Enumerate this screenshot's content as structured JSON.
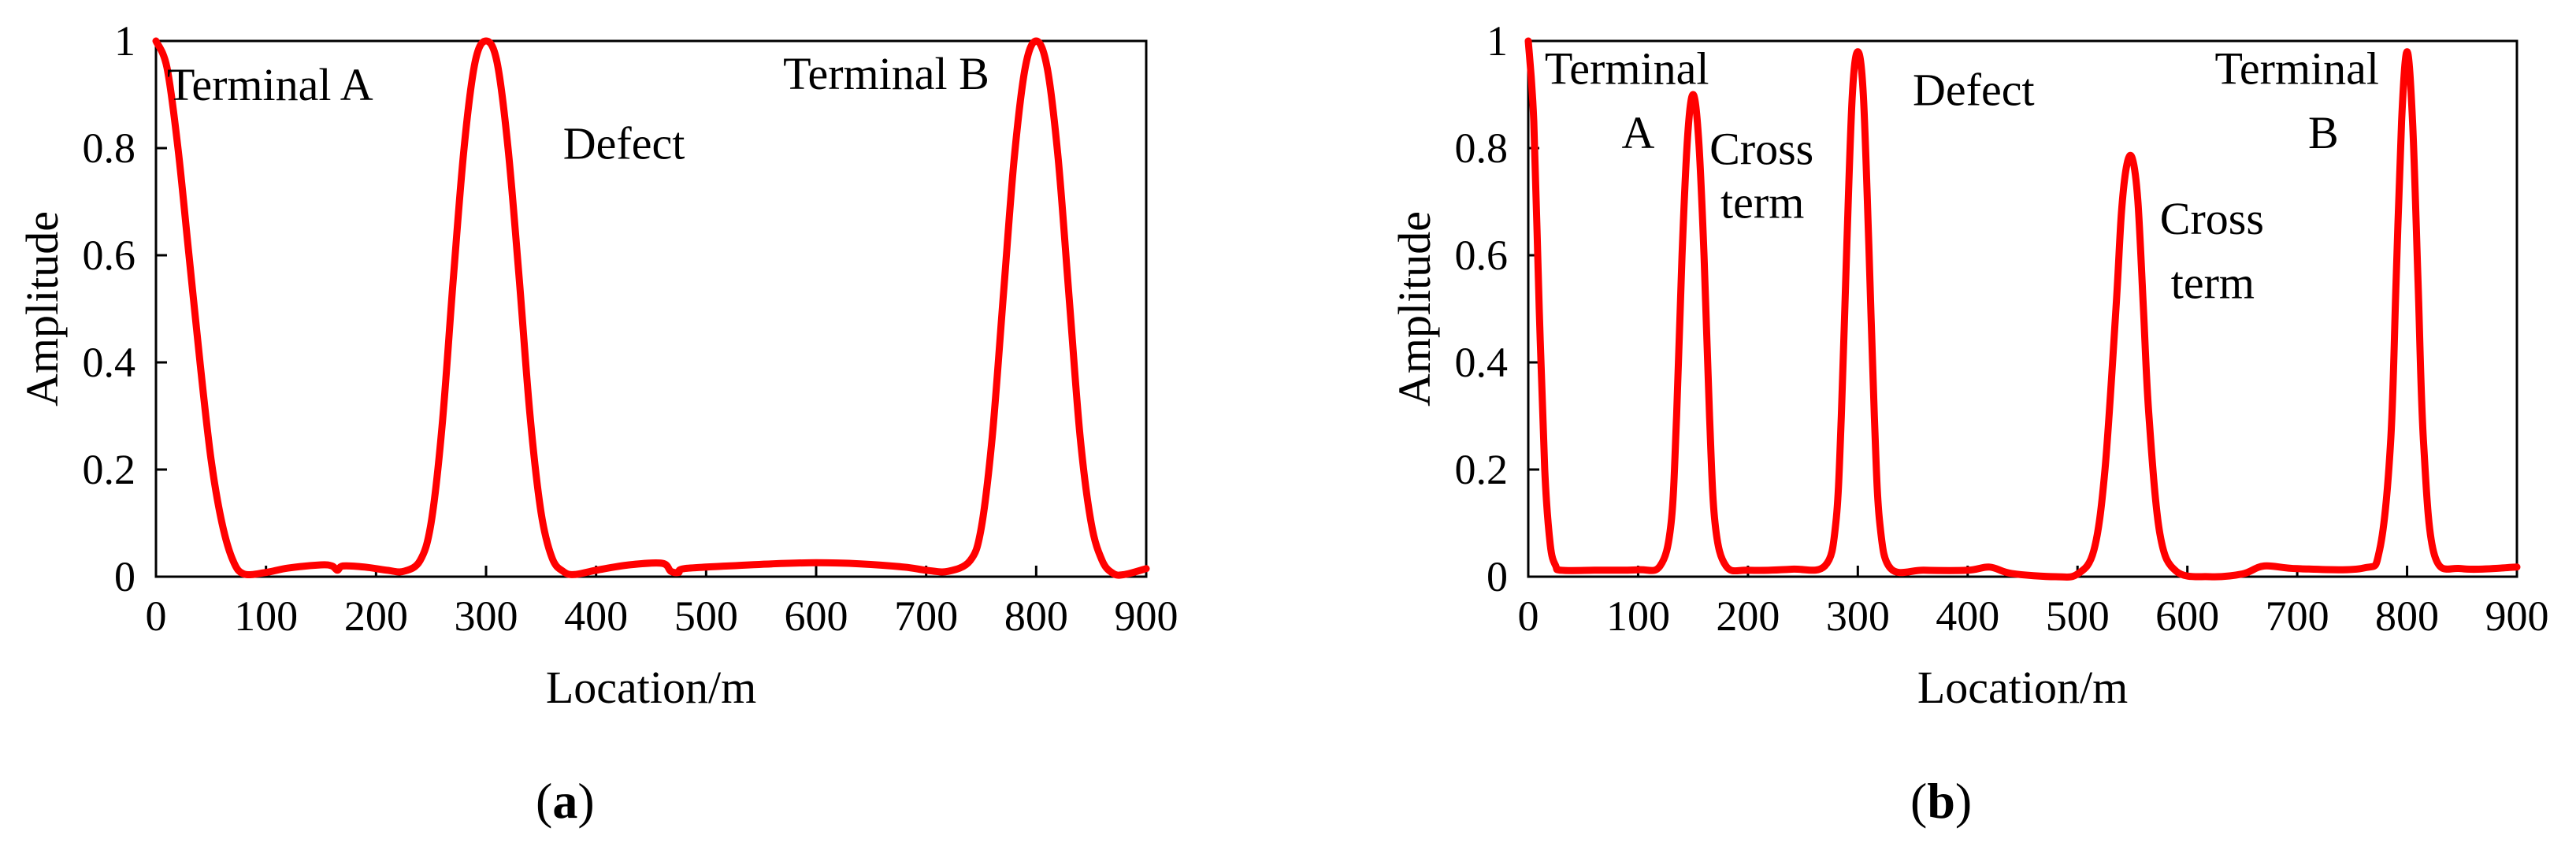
{
  "figure_captions": [
    "a",
    "b"
  ],
  "chart_data": [
    {
      "type": "line",
      "panel": "a",
      "xlabel": "Location/m",
      "ylabel": "Amplitude",
      "xlim": [
        0,
        900
      ],
      "ylim": [
        0,
        1
      ],
      "xticks": [
        0,
        100,
        200,
        300,
        400,
        500,
        600,
        700,
        800,
        900
      ],
      "yticks": [
        0,
        0.2,
        0.4,
        0.6,
        0.8,
        1
      ],
      "ytick_labels": [
        "0",
        "0.2",
        "0.4",
        "0.6",
        "0.8",
        "1"
      ],
      "grid": false,
      "series": [
        {
          "name": "amplitude",
          "color": "#ff0000",
          "x": [
            0,
            10,
            20,
            30,
            40,
            50,
            60,
            70,
            80,
            100,
            120,
            150,
            160,
            165,
            170,
            190,
            210,
            225,
            240,
            250,
            260,
            270,
            280,
            290,
            300,
            310,
            320,
            330,
            340,
            350,
            360,
            370,
            380,
            400,
            430,
            460,
            468,
            475,
            480,
            520,
            560,
            600,
            640,
            680,
            700,
            720,
            740,
            750,
            760,
            770,
            780,
            790,
            800,
            810,
            820,
            830,
            840,
            850,
            860,
            870,
            880,
            900
          ],
          "y": [
            1.0,
            0.95,
            0.8,
            0.6,
            0.4,
            0.22,
            0.1,
            0.03,
            0.005,
            0.008,
            0.016,
            0.022,
            0.02,
            0.012,
            0.02,
            0.018,
            0.012,
            0.01,
            0.03,
            0.1,
            0.28,
            0.55,
            0.8,
            0.96,
            1.0,
            0.96,
            0.8,
            0.56,
            0.3,
            0.12,
            0.035,
            0.01,
            0.004,
            0.012,
            0.022,
            0.025,
            0.01,
            0.008,
            0.015,
            0.02,
            0.024,
            0.026,
            0.024,
            0.018,
            0.012,
            0.01,
            0.03,
            0.09,
            0.26,
            0.52,
            0.78,
            0.95,
            1.0,
            0.95,
            0.78,
            0.52,
            0.26,
            0.1,
            0.03,
            0.006,
            0.004,
            0.015
          ]
        }
      ],
      "annotations": [
        {
          "text": "Terminal A",
          "x": 10,
          "y": 0.89
        },
        {
          "text": "Defect",
          "x": 370,
          "y": 0.78
        },
        {
          "text": "Terminal B",
          "x": 570,
          "y": 0.91
        }
      ]
    },
    {
      "type": "line",
      "panel": "b",
      "xlabel": "Location/m",
      "ylabel": "Amplitude",
      "xlim": [
        0,
        900
      ],
      "ylim": [
        0,
        1
      ],
      "xticks": [
        0,
        100,
        200,
        300,
        400,
        500,
        600,
        700,
        800,
        900
      ],
      "yticks": [
        0,
        0.2,
        0.4,
        0.6,
        0.8,
        1
      ],
      "ytick_labels": [
        "0",
        "0.2",
        "0.4",
        "0.6",
        "0.8",
        "1"
      ],
      "grid": false,
      "series": [
        {
          "name": "amplitude",
          "color": "#ff0000",
          "x": [
            0,
            5,
            10,
            15,
            20,
            25,
            30,
            60,
            100,
            120,
            130,
            135,
            140,
            145,
            150,
            155,
            160,
            165,
            170,
            180,
            200,
            240,
            270,
            280,
            285,
            290,
            295,
            300,
            305,
            310,
            315,
            320,
            330,
            360,
            400,
            420,
            440,
            480,
            500,
            515,
            525,
            535,
            540,
            545,
            550,
            555,
            560,
            565,
            575,
            590,
            620,
            650,
            670,
            700,
            760,
            775,
            785,
            790,
            795,
            800,
            805,
            810,
            815,
            825,
            850,
            900
          ],
          "y": [
            1.0,
            0.85,
            0.5,
            0.2,
            0.06,
            0.02,
            0.012,
            0.012,
            0.013,
            0.02,
            0.1,
            0.3,
            0.6,
            0.82,
            0.9,
            0.82,
            0.6,
            0.3,
            0.1,
            0.02,
            0.012,
            0.014,
            0.02,
            0.1,
            0.3,
            0.62,
            0.9,
            0.98,
            0.9,
            0.62,
            0.3,
            0.1,
            0.015,
            0.012,
            0.012,
            0.018,
            0.006,
            0.0,
            0.005,
            0.05,
            0.2,
            0.5,
            0.68,
            0.77,
            0.78,
            0.7,
            0.5,
            0.3,
            0.08,
            0.01,
            0.0,
            0.005,
            0.02,
            0.015,
            0.016,
            0.05,
            0.25,
            0.55,
            0.85,
            0.98,
            0.85,
            0.55,
            0.25,
            0.04,
            0.015,
            0.018
          ]
        }
      ],
      "annotations": [
        {
          "text": "Terminal",
          "x": 15,
          "y": 0.92
        },
        {
          "text": "A",
          "x": 85,
          "y": 0.8
        },
        {
          "text": "Cross",
          "x": 165,
          "y": 0.77
        },
        {
          "text": "term",
          "x": 175,
          "y": 0.67
        },
        {
          "text": "Defect",
          "x": 350,
          "y": 0.88
        },
        {
          "text": "Cross",
          "x": 575,
          "y": 0.64
        },
        {
          "text": "term",
          "x": 585,
          "y": 0.52
        },
        {
          "text": "Terminal",
          "x": 625,
          "y": 0.92
        },
        {
          "text": "B",
          "x": 710,
          "y": 0.8
        }
      ]
    }
  ]
}
